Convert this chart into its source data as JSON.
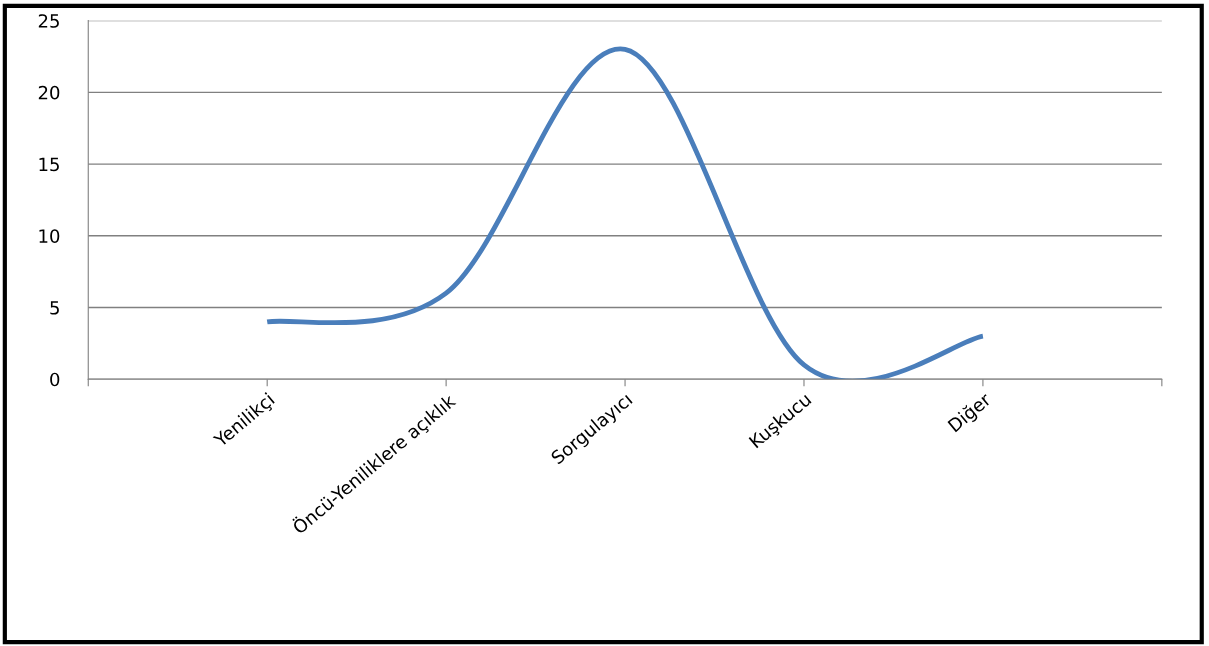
{
  "chart_data": {
    "type": "line",
    "categories": [
      "Yenilikçi",
      "Öncü-Yeniliklere açıklık",
      "Sorgulayıcı",
      "Kuşkucu",
      "Diğer"
    ],
    "series": [
      {
        "color": "#4a7ebb",
        "values": [
          4,
          6,
          23,
          1,
          3
        ]
      }
    ],
    "ylim": [
      0,
      25
    ],
    "yticks": [
      0,
      5,
      10,
      15,
      20,
      25
    ],
    "grid": "y",
    "legend": false,
    "marker": "none",
    "line_style": "solid"
  }
}
